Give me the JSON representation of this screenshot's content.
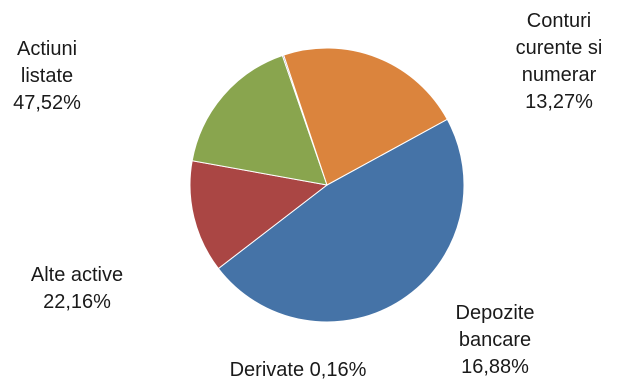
{
  "chart_data": {
    "type": "pie",
    "slices": [
      {
        "label_lines": [
          "Actiuni",
          "listate"
        ],
        "percent_text": "47,52%",
        "value": 47.52,
        "color": "#4573A7"
      },
      {
        "label_lines": [
          "Conturi",
          "curente si",
          "numerar"
        ],
        "percent_text": "13,27%",
        "value": 13.27,
        "color": "#AA4644"
      },
      {
        "label_lines": [
          "Depozite",
          "bancare"
        ],
        "percent_text": "16,88%",
        "value": 16.88,
        "color": "#89A54E"
      },
      {
        "label_lines": [
          "Derivate"
        ],
        "percent_text": "0,16%",
        "value": 0.16,
        "color": "#71588F"
      },
      {
        "label_lines": [
          "Alte active"
        ],
        "percent_text": "22,16%",
        "value": 22.16,
        "color": "#DB843D"
      }
    ]
  }
}
